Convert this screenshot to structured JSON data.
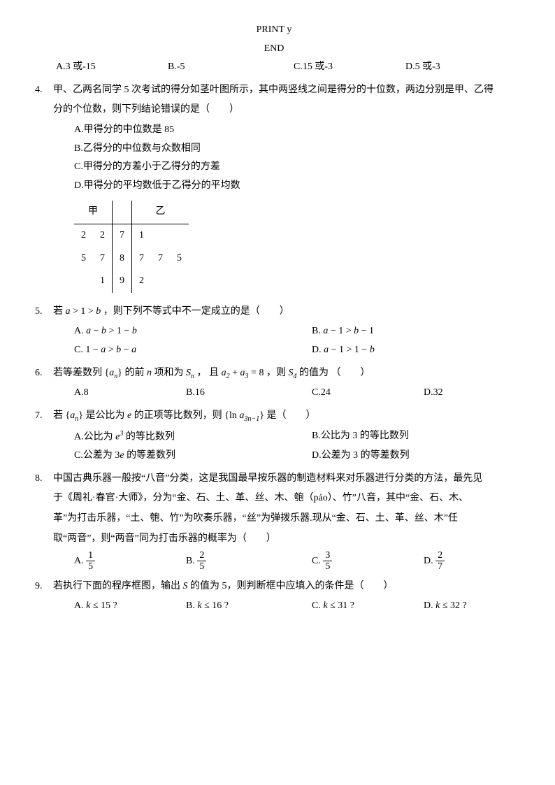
{
  "code": {
    "line1": "PRINT y",
    "line2": "END"
  },
  "q3opts": {
    "a": "A.3 或-15",
    "b": "B.-5",
    "c": "C.15 或-3",
    "d": "D.5 或-3"
  },
  "q4": {
    "num": "4.",
    "text1": "甲、乙两名同学 5 次考试的得分如茎叶图所示，其中两竖线之间是得分的十位数，两边分别是甲、乙得",
    "text2": "分的个位数，则下列结论错误的是（　　）",
    "a": "A.甲得分的中位数是 85",
    "b": "B.乙得分的中位数与众数相同",
    "c": "C.甲得分的方差小于乙得分的方差",
    "d": "D.甲得分的平均数低于乙得分的平均数",
    "stem": {
      "hdr_l": "甲",
      "hdr_r": "乙",
      "rows": [
        {
          "l": [
            "2",
            "2"
          ],
          "s": "7",
          "r": [
            "1",
            "",
            ""
          ]
        },
        {
          "l": [
            "5",
            "7"
          ],
          "s": "8",
          "r": [
            "7",
            "7",
            "5"
          ]
        },
        {
          "l": [
            "",
            "1"
          ],
          "s": "9",
          "r": [
            "2",
            "",
            ""
          ]
        }
      ]
    }
  },
  "q5": {
    "num": "5.",
    "text": "若 a > 1 > b ，则下列不等式中不一定成立的是（　　）",
    "a": "A. a − b > 1 − b",
    "b": "B. a − 1 > b − 1",
    "c": "C. 1 − a > b − a",
    "d": "D. a − 1 > 1 − b"
  },
  "q6": {
    "num": "6.",
    "text_pre": "若等差数列",
    "seq": "{aₙ}",
    "text_mid1": " 的前 n 项和为 Sₙ ， 且 a₂ + a₃ = 8 ，则 S₄ 的值为 （　　）",
    "a": "A.8",
    "b": "B.16",
    "c": "C.24",
    "d": "D.32"
  },
  "q7": {
    "num": "7.",
    "text": "若 {aₙ} 是公比为 e 的正项等比数列，则 {ln a₃ₙ₋₁} 是（　　）",
    "a": "A.公比为 e³ 的等比数列",
    "b": "B.公比为 3 的等比数列",
    "c": "C.公差为 3e 的等差数列",
    "d": "D.公差为 3 的等差数列"
  },
  "q8": {
    "num": "8.",
    "l1": "中国古典乐器一般按“八音”分类，这是我国最早按乐器的制造材料来对乐器进行分类的方法，最先见",
    "l2": "于《周礼·春官·大师》，分为“金、石、土、革、丝、木、匏（páo）、竹”八音，其中“金、石、木、",
    "l3": "革”为打击乐器，“土、匏、竹”为吹奏乐器，“丝”为弹拨乐器.现从“金、石、土、革、丝、木”任",
    "l4": "取“两音”，则“两音”同为打击乐器的概率为（　　）",
    "opts": {
      "a_n": "1",
      "a_d": "5",
      "b_n": "2",
      "b_d": "5",
      "c_n": "3",
      "c_d": "5",
      "d_n": "2",
      "d_d": "7"
    },
    "labels": {
      "a": "A.",
      "b": "B.",
      "c": "C.",
      "d": "D."
    }
  },
  "q9": {
    "num": "9.",
    "text": "若执行下面的程序框图，输出 S 的值为 5，则判断框中应填入的条件是（　　）",
    "a": "A. k ≤ 15 ?",
    "b": "B. k ≤ 16 ?",
    "c": "C. k ≤ 31 ?",
    "d": "D. k ≤ 32 ?"
  }
}
